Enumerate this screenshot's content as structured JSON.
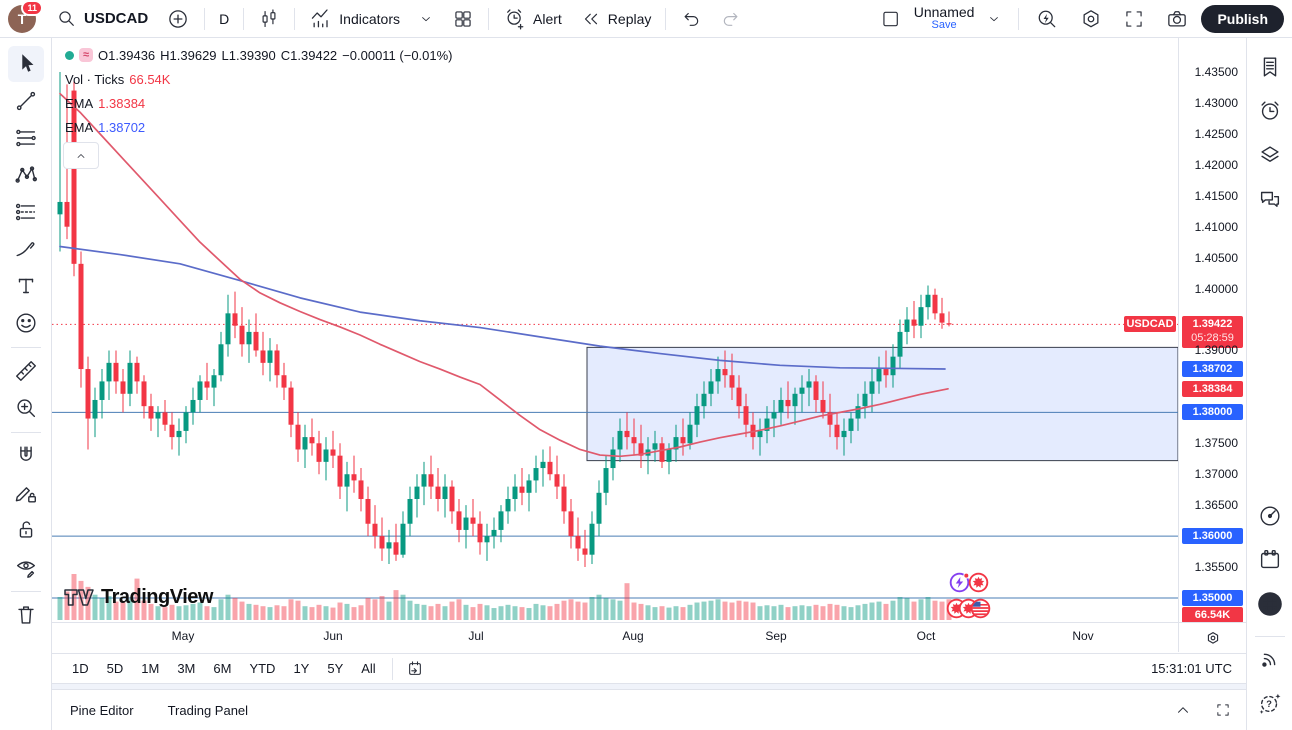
{
  "topbar": {
    "avatar_initial": "T",
    "notification_count": "11",
    "symbol": "USDCAD",
    "interval": "D",
    "indicators_label": "Indicators",
    "alert_label": "Alert",
    "replay_label": "Replay",
    "layout_name": "Unnamed",
    "save_label": "Save",
    "publish_label": "Publish",
    "icon_names": [
      "search-icon",
      "plus-circle-icon",
      "candlestick-icon",
      "indicators-icon",
      "chevron-down-icon",
      "grid-layout-icon",
      "alert-clock-icon",
      "replay-icon",
      "undo-icon",
      "redo-icon",
      "layout-square-icon",
      "quick-search-icon",
      "settings-gear-icon",
      "fullscreen-icon",
      "camera-icon"
    ]
  },
  "left_toolbar_icons": [
    "cursor-icon",
    "trend-line-icon",
    "fib-lines-icon",
    "xabcd-pattern-icon",
    "projection-icon",
    "brush-icon",
    "text-icon",
    "emoji-icon",
    "ruler-icon",
    "zoom-in-icon",
    "magnet-icon",
    "drawing-lock-icon",
    "lock-icon",
    "hide-drawings-icon",
    "trash-icon"
  ],
  "right_sidebar_icons": [
    "watchlist-icon",
    "alerts-icon",
    "layers-icon",
    "chat-icon",
    "radar-icon",
    "calendar-icon",
    "apps-grid-icon",
    "broadcast-icon",
    "help-icon"
  ],
  "legend": {
    "ohlc": {
      "open": "O1.39436",
      "high": "H1.39629",
      "low": "L1.39390",
      "close": "C1.39422",
      "change": "−0.00011 (−0.01%)"
    },
    "volume_label": "Vol · Ticks",
    "volume_value": "66.54K",
    "ema_fast_label": "EMA",
    "ema_fast_value": "1.38384",
    "ema_slow_label": "EMA",
    "ema_slow_value": "1.38702"
  },
  "watermark_text": "TradingView",
  "price_scale": {
    "symbol_tag": "USDCAD",
    "last_price": "1.39422",
    "countdown": "05:28:59",
    "ema_slow_badge": "1.38702",
    "ema_fast_badge": "1.38384",
    "level_badge_138": "1.38000",
    "level_badge_136": "1.36000",
    "level_badge_135": "1.35000",
    "volume_badge": "66.54K"
  },
  "bottom": {
    "timeframes": [
      "1D",
      "5D",
      "1M",
      "3M",
      "6M",
      "YTD",
      "1Y",
      "5Y",
      "All"
    ],
    "clock": "15:31:01 UTC",
    "pine_editor": "Pine Editor",
    "trading_panel": "Trading Panel"
  },
  "chart_data": {
    "type": "candlestick",
    "symbol": "USDCAD",
    "interval": "1D",
    "ylim": [
      1.3461,
      1.4405
    ],
    "grid": false,
    "y_ticks": [
      1.435,
      1.43,
      1.425,
      1.42,
      1.415,
      1.41,
      1.405,
      1.4,
      1.39,
      1.375,
      1.37,
      1.365,
      1.355
    ],
    "months": [
      {
        "label": "May",
        "x": 183
      },
      {
        "label": "Jun",
        "x": 333
      },
      {
        "label": "Jul",
        "x": 476
      },
      {
        "label": "Aug",
        "x": 633
      },
      {
        "label": "Sep",
        "x": 776
      },
      {
        "label": "Oct",
        "x": 926
      },
      {
        "label": "Nov",
        "x": 1083
      }
    ],
    "last_price": 1.39422,
    "countdown": "05:28:59",
    "horizontal_lines": [
      1.38,
      1.36,
      1.35
    ],
    "range_box": {
      "x0": 535,
      "x1": 1126,
      "price_top": 1.3905,
      "price_bottom": 1.3722
    },
    "ema_fast": {
      "label": "EMA",
      "value": 1.38384,
      "points": [
        [
          60,
          1.4315
        ],
        [
          80,
          1.4285
        ],
        [
          100,
          1.425
        ],
        [
          120,
          1.4215
        ],
        [
          140,
          1.418
        ],
        [
          160,
          1.4145
        ],
        [
          180,
          1.411
        ],
        [
          200,
          1.4075
        ],
        [
          220,
          1.4045
        ],
        [
          240,
          1.4015
        ],
        [
          260,
          1.3993
        ],
        [
          280,
          1.3977
        ],
        [
          300,
          1.3963
        ],
        [
          320,
          1.395
        ],
        [
          340,
          1.3938
        ],
        [
          360,
          1.3925
        ],
        [
          380,
          1.391
        ],
        [
          400,
          1.3896
        ],
        [
          420,
          1.3882
        ],
        [
          440,
          1.387
        ],
        [
          460,
          1.3857
        ],
        [
          480,
          1.3845
        ],
        [
          500,
          1.382
        ],
        [
          520,
          1.3795
        ],
        [
          540,
          1.3772
        ],
        [
          560,
          1.3755
        ],
        [
          580,
          1.374
        ],
        [
          600,
          1.3731
        ],
        [
          620,
          1.3729
        ],
        [
          640,
          1.3732
        ],
        [
          660,
          1.3738
        ],
        [
          680,
          1.3744
        ],
        [
          700,
          1.3752
        ],
        [
          720,
          1.3759
        ],
        [
          740,
          1.3765
        ],
        [
          760,
          1.3771
        ],
        [
          780,
          1.3778
        ],
        [
          800,
          1.3786
        ],
        [
          820,
          1.3794
        ],
        [
          840,
          1.38
        ],
        [
          860,
          1.3806
        ],
        [
          880,
          1.3813
        ],
        [
          900,
          1.3821
        ],
        [
          920,
          1.3829
        ],
        [
          948,
          1.3838
        ]
      ]
    },
    "ema_slow": {
      "label": "EMA",
      "value": 1.38702,
      "points": [
        [
          60,
          1.4068
        ],
        [
          120,
          1.4055
        ],
        [
          180,
          1.404
        ],
        [
          240,
          1.4013
        ],
        [
          300,
          1.3985
        ],
        [
          360,
          1.3962
        ],
        [
          420,
          1.3948
        ],
        [
          480,
          1.3937
        ],
        [
          540,
          1.3922
        ],
        [
          600,
          1.3907
        ],
        [
          660,
          1.3895
        ],
        [
          720,
          1.3884
        ],
        [
          780,
          1.3876
        ],
        [
          840,
          1.3872
        ],
        [
          900,
          1.3871
        ],
        [
          945,
          1.387
        ]
      ]
    },
    "volume_last_label": "66.54K",
    "colors": {
      "up": "#089981",
      "down": "#f23645",
      "vol_up": "rgba(8,153,129,0.45)",
      "vol_down": "rgba(242,54,69,0.45)",
      "ema_fast": "#e0596c",
      "ema_slow": "#5b6cc9",
      "level_line": "#4a7db5",
      "box_fill": "rgba(90,130,250,0.16)",
      "box_border": "#3a3f4d",
      "accent_blue": "#2962ff",
      "last_price_line": "#f23645"
    },
    "candles": [
      [
        1.412,
        1.435,
        1.406,
        1.414,
        0.5
      ],
      [
        1.414,
        1.433,
        1.408,
        1.41,
        0.62
      ],
      [
        1.432,
        1.4335,
        1.402,
        1.404,
        1.0
      ],
      [
        1.404,
        1.406,
        1.384,
        1.387,
        0.85
      ],
      [
        1.387,
        1.389,
        1.374,
        1.379,
        0.72
      ],
      [
        1.379,
        1.384,
        1.376,
        1.382,
        0.55
      ],
      [
        1.382,
        1.387,
        1.379,
        1.385,
        0.48
      ],
      [
        1.385,
        1.39,
        1.382,
        1.388,
        0.52
      ],
      [
        1.388,
        1.39,
        1.383,
        1.385,
        0.4
      ],
      [
        1.385,
        1.387,
        1.38,
        1.383,
        0.38
      ],
      [
        1.383,
        1.39,
        1.381,
        1.388,
        0.45
      ],
      [
        1.388,
        1.389,
        1.383,
        1.385,
        0.9
      ],
      [
        1.385,
        1.386,
        1.379,
        1.381,
        0.42
      ],
      [
        1.381,
        1.383,
        1.377,
        1.379,
        0.35
      ],
      [
        1.379,
        1.381,
        1.376,
        1.38,
        0.3
      ],
      [
        1.38,
        1.382,
        1.377,
        1.378,
        0.28
      ],
      [
        1.378,
        1.38,
        1.374,
        1.376,
        0.33
      ],
      [
        1.376,
        1.379,
        1.373,
        1.377,
        0.3
      ],
      [
        1.377,
        1.381,
        1.375,
        1.38,
        0.32
      ],
      [
        1.38,
        1.384,
        1.378,
        1.382,
        0.35
      ],
      [
        1.382,
        1.386,
        1.38,
        1.385,
        0.38
      ],
      [
        1.385,
        1.388,
        1.382,
        1.384,
        0.3
      ],
      [
        1.384,
        1.387,
        1.381,
        1.386,
        0.28
      ],
      [
        1.386,
        1.393,
        1.385,
        1.391,
        0.45
      ],
      [
        1.391,
        1.399,
        1.389,
        1.396,
        0.55
      ],
      [
        1.396,
        1.3995,
        1.392,
        1.394,
        0.48
      ],
      [
        1.394,
        1.397,
        1.389,
        1.391,
        0.4
      ],
      [
        1.391,
        1.395,
        1.388,
        1.393,
        0.35
      ],
      [
        1.393,
        1.396,
        1.389,
        1.39,
        0.33
      ],
      [
        1.39,
        1.393,
        1.386,
        1.388,
        0.3
      ],
      [
        1.388,
        1.392,
        1.385,
        1.39,
        0.28
      ],
      [
        1.39,
        1.391,
        1.384,
        1.386,
        0.32
      ],
      [
        1.386,
        1.388,
        1.382,
        1.384,
        0.3
      ],
      [
        1.384,
        1.385,
        1.376,
        1.378,
        0.45
      ],
      [
        1.378,
        1.38,
        1.372,
        1.374,
        0.42
      ],
      [
        1.374,
        1.378,
        1.371,
        1.376,
        0.3
      ],
      [
        1.376,
        1.379,
        1.373,
        1.375,
        0.28
      ],
      [
        1.375,
        1.377,
        1.37,
        1.372,
        0.33
      ],
      [
        1.372,
        1.376,
        1.369,
        1.374,
        0.3
      ],
      [
        1.374,
        1.377,
        1.371,
        1.373,
        0.27
      ],
      [
        1.373,
        1.375,
        1.366,
        1.368,
        0.38
      ],
      [
        1.368,
        1.372,
        1.364,
        1.37,
        0.35
      ],
      [
        1.37,
        1.373,
        1.367,
        1.369,
        0.28
      ],
      [
        1.369,
        1.371,
        1.364,
        1.366,
        0.32
      ],
      [
        1.366,
        1.368,
        1.36,
        1.362,
        0.48
      ],
      [
        1.362,
        1.365,
        1.358,
        1.36,
        0.45
      ],
      [
        1.36,
        1.363,
        1.356,
        1.358,
        0.52
      ],
      [
        1.358,
        1.361,
        1.3555,
        1.359,
        0.4
      ],
      [
        1.359,
        1.362,
        1.356,
        1.357,
        0.65
      ],
      [
        1.357,
        1.364,
        1.3565,
        1.362,
        0.55
      ],
      [
        1.362,
        1.368,
        1.36,
        1.366,
        0.42
      ],
      [
        1.366,
        1.37,
        1.363,
        1.368,
        0.35
      ],
      [
        1.368,
        1.372,
        1.365,
        1.37,
        0.33
      ],
      [
        1.37,
        1.373,
        1.366,
        1.368,
        0.3
      ],
      [
        1.368,
        1.371,
        1.364,
        1.366,
        0.35
      ],
      [
        1.366,
        1.37,
        1.363,
        1.368,
        0.3
      ],
      [
        1.368,
        1.369,
        1.362,
        1.364,
        0.4
      ],
      [
        1.364,
        1.366,
        1.359,
        1.361,
        0.45
      ],
      [
        1.361,
        1.365,
        1.358,
        1.363,
        0.33
      ],
      [
        1.363,
        1.366,
        1.36,
        1.362,
        0.28
      ],
      [
        1.362,
        1.364,
        1.357,
        1.359,
        0.35
      ],
      [
        1.359,
        1.362,
        1.356,
        1.36,
        0.32
      ],
      [
        1.36,
        1.363,
        1.358,
        1.361,
        0.26
      ],
      [
        1.361,
        1.365,
        1.359,
        1.364,
        0.3
      ],
      [
        1.364,
        1.368,
        1.362,
        1.366,
        0.33
      ],
      [
        1.366,
        1.37,
        1.364,
        1.368,
        0.3
      ],
      [
        1.368,
        1.371,
        1.365,
        1.367,
        0.28
      ],
      [
        1.367,
        1.37,
        1.364,
        1.369,
        0.26
      ],
      [
        1.369,
        1.373,
        1.367,
        1.371,
        0.35
      ],
      [
        1.371,
        1.374,
        1.368,
        1.372,
        0.32
      ],
      [
        1.372,
        1.3745,
        1.369,
        1.37,
        0.3
      ],
      [
        1.37,
        1.373,
        1.366,
        1.368,
        0.35
      ],
      [
        1.368,
        1.37,
        1.362,
        1.364,
        0.42
      ],
      [
        1.364,
        1.366,
        1.358,
        1.36,
        0.45
      ],
      [
        1.36,
        1.363,
        1.356,
        1.358,
        0.4
      ],
      [
        1.358,
        1.361,
        1.355,
        1.357,
        0.38
      ],
      [
        1.357,
        1.364,
        1.3555,
        1.362,
        0.5
      ],
      [
        1.362,
        1.369,
        1.36,
        1.367,
        0.55
      ],
      [
        1.367,
        1.373,
        1.365,
        1.371,
        0.48
      ],
      [
        1.371,
        1.376,
        1.369,
        1.374,
        0.45
      ],
      [
        1.374,
        1.379,
        1.372,
        1.377,
        0.42
      ],
      [
        1.377,
        1.38,
        1.374,
        1.376,
        0.8
      ],
      [
        1.376,
        1.379,
        1.373,
        1.375,
        0.38
      ],
      [
        1.375,
        1.378,
        1.371,
        1.373,
        0.35
      ],
      [
        1.373,
        1.376,
        1.37,
        1.374,
        0.32
      ],
      [
        1.374,
        1.377,
        1.372,
        1.375,
        0.28
      ],
      [
        1.375,
        1.376,
        1.371,
        1.372,
        0.3
      ],
      [
        1.372,
        1.375,
        1.37,
        1.374,
        0.27
      ],
      [
        1.374,
        1.378,
        1.372,
        1.376,
        0.3
      ],
      [
        1.376,
        1.379,
        1.373,
        1.375,
        0.28
      ],
      [
        1.375,
        1.38,
        1.374,
        1.378,
        0.33
      ],
      [
        1.378,
        1.383,
        1.376,
        1.381,
        0.38
      ],
      [
        1.381,
        1.385,
        1.379,
        1.383,
        0.4
      ],
      [
        1.383,
        1.387,
        1.381,
        1.385,
        0.42
      ],
      [
        1.385,
        1.389,
        1.383,
        1.387,
        0.45
      ],
      [
        1.387,
        1.39,
        1.384,
        1.386,
        0.4
      ],
      [
        1.386,
        1.3895,
        1.382,
        1.384,
        0.38
      ],
      [
        1.384,
        1.386,
        1.379,
        1.381,
        0.42
      ],
      [
        1.381,
        1.383,
        1.376,
        1.378,
        0.4
      ],
      [
        1.378,
        1.38,
        1.374,
        1.376,
        0.38
      ],
      [
        1.376,
        1.379,
        1.373,
        1.377,
        0.3
      ],
      [
        1.377,
        1.381,
        1.375,
        1.379,
        0.32
      ],
      [
        1.379,
        1.382,
        1.376,
        1.38,
        0.3
      ],
      [
        1.38,
        1.384,
        1.378,
        1.382,
        0.33
      ],
      [
        1.382,
        1.385,
        1.379,
        1.381,
        0.28
      ],
      [
        1.381,
        1.384,
        1.378,
        1.383,
        0.3
      ],
      [
        1.383,
        1.386,
        1.38,
        1.384,
        0.32
      ],
      [
        1.384,
        1.387,
        1.381,
        1.385,
        0.3
      ],
      [
        1.385,
        1.386,
        1.38,
        1.382,
        0.33
      ],
      [
        1.382,
        1.385,
        1.379,
        1.38,
        0.3
      ],
      [
        1.38,
        1.383,
        1.376,
        1.378,
        0.35
      ],
      [
        1.378,
        1.38,
        1.374,
        1.376,
        0.33
      ],
      [
        1.376,
        1.379,
        1.373,
        1.377,
        0.3
      ],
      [
        1.377,
        1.38,
        1.375,
        1.379,
        0.28
      ],
      [
        1.379,
        1.383,
        1.377,
        1.381,
        0.32
      ],
      [
        1.381,
        1.385,
        1.379,
        1.383,
        0.35
      ],
      [
        1.383,
        1.387,
        1.38,
        1.385,
        0.38
      ],
      [
        1.385,
        1.389,
        1.383,
        1.387,
        0.4
      ],
      [
        1.387,
        1.39,
        1.384,
        1.386,
        0.35
      ],
      [
        1.386,
        1.391,
        1.384,
        1.389,
        0.42
      ],
      [
        1.389,
        1.395,
        1.387,
        1.393,
        0.5
      ],
      [
        1.393,
        1.397,
        1.391,
        1.395,
        0.48
      ],
      [
        1.395,
        1.398,
        1.392,
        1.394,
        0.4
      ],
      [
        1.394,
        1.399,
        1.392,
        1.397,
        0.45
      ],
      [
        1.397,
        1.4005,
        1.395,
        1.399,
        0.5
      ],
      [
        1.399,
        1.4,
        1.395,
        1.396,
        0.42
      ],
      [
        1.396,
        1.3985,
        1.3935,
        1.3945,
        0.4
      ],
      [
        1.3944,
        1.3963,
        1.3939,
        1.3942,
        0.45
      ]
    ]
  }
}
